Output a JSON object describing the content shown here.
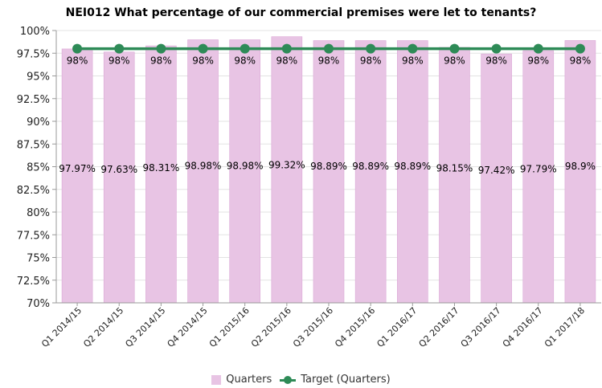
{
  "chart_data": {
    "type": "bar",
    "title": "NEI012 What percentage of our commercial premises were let to tenants?",
    "categories": [
      "Q1 2014/15",
      "Q2 2014/15",
      "Q3 2014/15",
      "Q4 2014/15",
      "Q1 2015/16",
      "Q2 2015/16",
      "Q3 2015/16",
      "Q4 2015/16",
      "Q1 2016/17",
      "Q2 2016/17",
      "Q3 2016/17",
      "Q4 2016/17",
      "Q1 2017/18"
    ],
    "yticks": [
      "70%",
      "72.5%",
      "75%",
      "77.5%",
      "80%",
      "82.5%",
      "85%",
      "87.5%",
      "90%",
      "92.5%",
      "95%",
      "97.5%",
      "100%"
    ],
    "ylim": [
      70,
      100
    ],
    "grid": true,
    "legend_position": "bottom",
    "series": [
      {
        "name": "Quarters",
        "type": "bar",
        "color": "#e8c4e4",
        "values": [
          97.97,
          97.63,
          98.31,
          98.98,
          98.98,
          99.32,
          98.89,
          98.89,
          98.89,
          98.15,
          97.42,
          97.79,
          98.9
        ],
        "labels": [
          "97.97%",
          "97.63%",
          "98.31%",
          "98.98%",
          "98.98%",
          "99.32%",
          "98.89%",
          "98.89%",
          "98.89%",
          "98.15%",
          "97.42%",
          "97.79%",
          "98.9%"
        ]
      },
      {
        "name": "Target (Quarters)",
        "type": "line",
        "color": "#2e8b57",
        "values": [
          98,
          98,
          98,
          98,
          98,
          98,
          98,
          98,
          98,
          98,
          98,
          98,
          98
        ],
        "labels": [
          "98%",
          "98%",
          "98%",
          "98%",
          "98%",
          "98%",
          "98%",
          "98%",
          "98%",
          "98%",
          "98%",
          "98%",
          "98%"
        ]
      }
    ]
  }
}
